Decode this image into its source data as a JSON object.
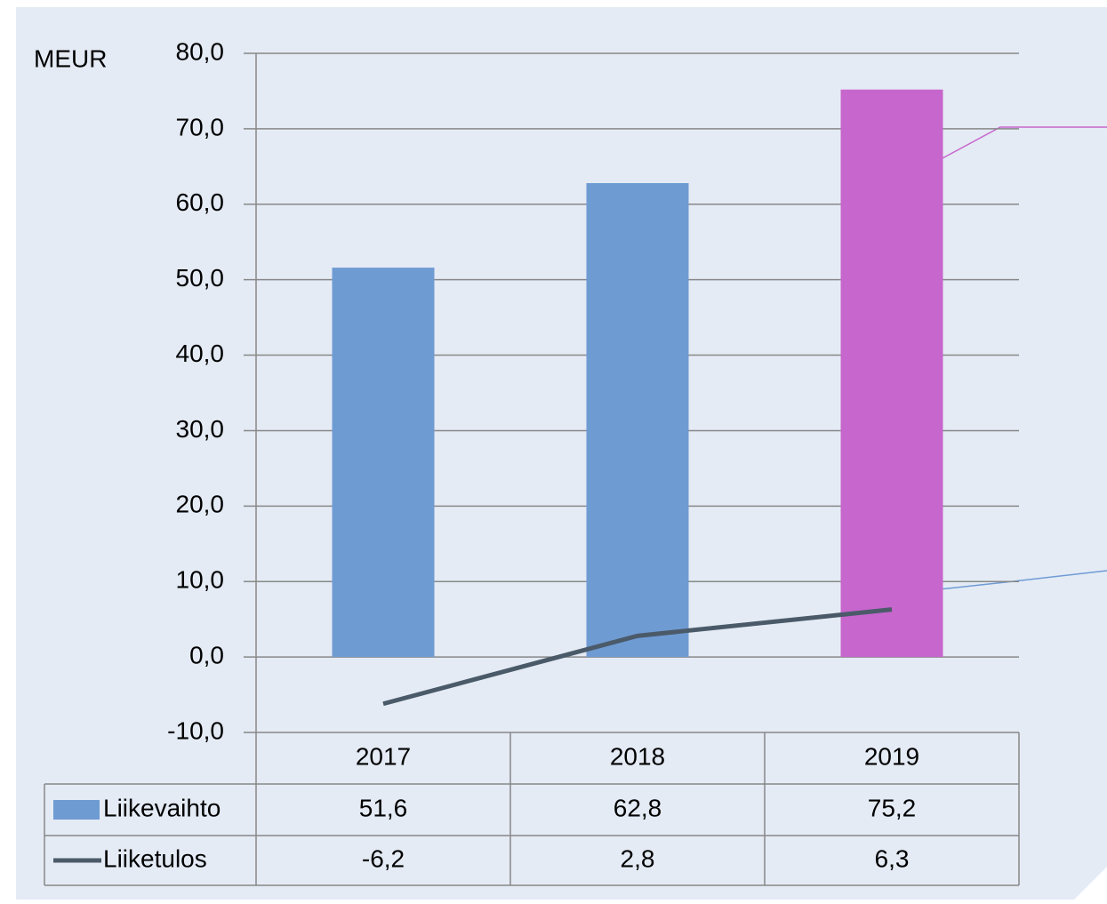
{
  "chart_data": {
    "type": "bar",
    "ylabel": "MEUR",
    "categories": [
      "2017",
      "2018",
      "2019"
    ],
    "series": [
      {
        "name": "Liikevaihto",
        "type": "bar",
        "colors": [
          "#6f9bd3",
          "#6f9bd3",
          "#c766cc"
        ],
        "values": [
          51.6,
          62.8,
          75.2
        ],
        "value_labels": [
          "51,6",
          "62,8",
          "75,2"
        ]
      },
      {
        "name": "Liiketulos",
        "type": "line",
        "color": "#4b5a69",
        "values": [
          -6.2,
          2.8,
          6.3
        ],
        "value_labels": [
          "-6,2",
          "2,8",
          "6,3"
        ]
      }
    ],
    "ylim": [
      -10,
      80
    ],
    "yticks": [
      {
        "value": -10,
        "label": "-10,0"
      },
      {
        "value": 0,
        "label": "0,0"
      },
      {
        "value": 10,
        "label": "10,0"
      },
      {
        "value": 20,
        "label": "20,0"
      },
      {
        "value": 30,
        "label": "30,0"
      },
      {
        "value": 40,
        "label": "40,0"
      },
      {
        "value": 50,
        "label": "50,0"
      },
      {
        "value": 60,
        "label": "60,0"
      },
      {
        "value": 70,
        "label": "70,0"
      },
      {
        "value": 80,
        "label": "80,0"
      }
    ],
    "grid": true
  }
}
